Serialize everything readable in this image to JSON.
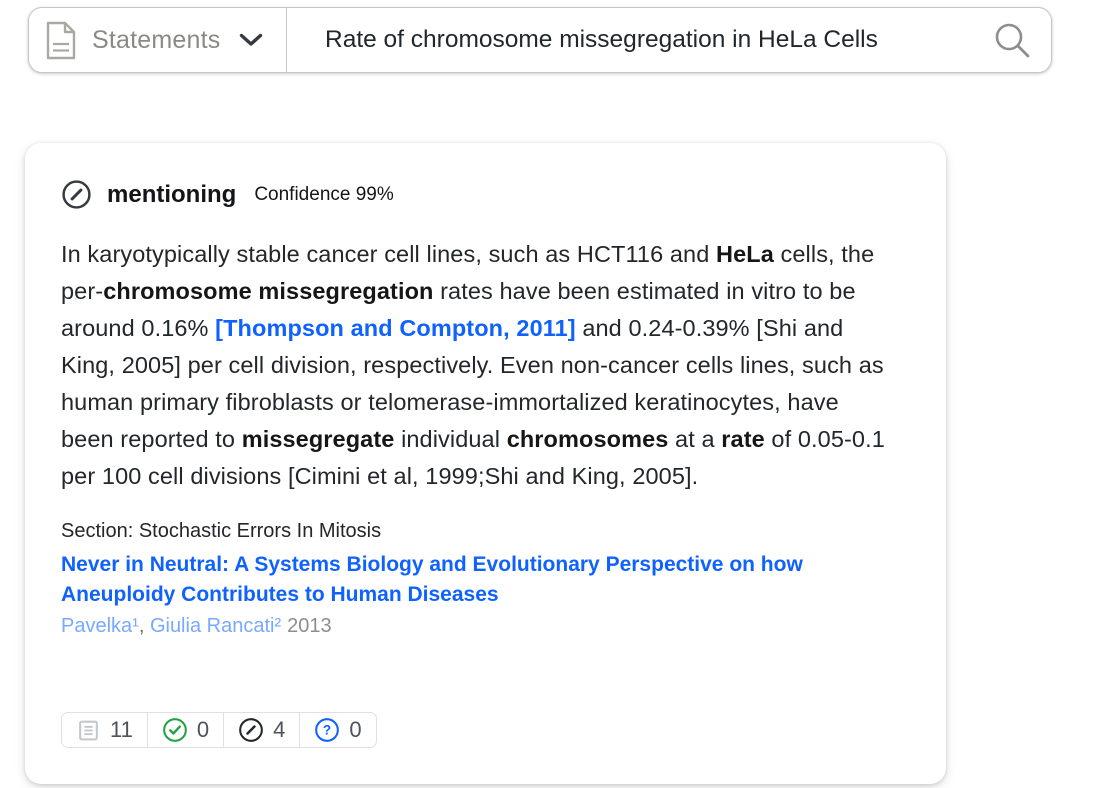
{
  "colors": {
    "link_blue": "#0f62fe",
    "author_blue": "#78a9ff",
    "supporting_green": "#24a148",
    "icon_dark": "#343a3f",
    "muted_gray": "#8d8d8d",
    "border_gray": "#c6c6c6"
  },
  "search_bar": {
    "type_selector": {
      "label": "Statements"
    },
    "query": "Rate of chromosome missegregation in HeLa Cells"
  },
  "card": {
    "classification": {
      "label": "mentioning",
      "confidence": "Confidence 99%"
    },
    "statement": {
      "segments": [
        {
          "style": "normal",
          "text": "In karyotypically stable cancer cell lines, such as HCT116 and "
        },
        {
          "style": "bold",
          "text": "HeLa"
        },
        {
          "style": "normal",
          "text": " cells, the per-"
        },
        {
          "style": "bold",
          "text": "chromosome missegregation"
        },
        {
          "style": "normal",
          "text": " rates have been estimated in vitro to be around 0.16% "
        },
        {
          "style": "link",
          "text": "[Thompson and Compton, 2011]"
        },
        {
          "style": "normal",
          "text": " and 0.24-0.39% [Shi and King, 2005] per cell division, respectively. Even non-cancer cells lines, such as human primary fibroblasts or telomerase-immortalized keratinocytes, have been reported to "
        },
        {
          "style": "bold",
          "text": "missegregate"
        },
        {
          "style": "normal",
          "text": " individual "
        },
        {
          "style": "bold",
          "text": "chromosomes"
        },
        {
          "style": "normal",
          "text": " at a "
        },
        {
          "style": "bold",
          "text": "rate"
        },
        {
          "style": "normal",
          "text": " of 0.05-0.1 per 100 cell divisions [Cimini et al, 1999;Shi and King, 2005]."
        }
      ]
    },
    "section": "Section: Stochastic Errors In Mitosis",
    "paper": {
      "title": "Never in Neutral: A Systems Biology and Evolutionary Perspective on how Aneuploidy Contributes to Human Diseases",
      "authors": [
        {
          "name": "Pavelka",
          "sup": "¹"
        },
        {
          "name": "Giulia Rancati",
          "sup": "²"
        }
      ],
      "separator": ", ",
      "year": "2013"
    },
    "badges": {
      "citing_publications": "11",
      "supporting": "0",
      "mentioning": "4",
      "unclassified": "0"
    }
  }
}
